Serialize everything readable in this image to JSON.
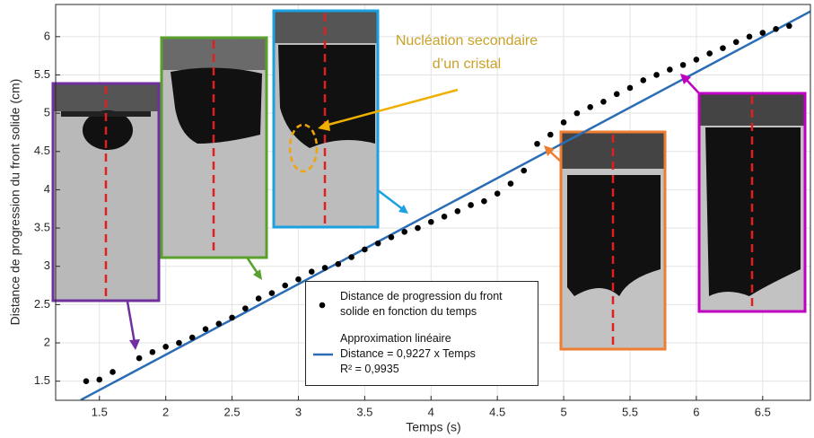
{
  "chart_data": {
    "type": "scatter",
    "x_label": "Temps (s)",
    "y_label": "Distance de progression du front solide (cm)",
    "annotation": "Nucléation secondaire d’un cristal",
    "xlim": [
      1.17,
      6.86
    ],
    "ylim": [
      1.25,
      6.42
    ],
    "xticks": [
      1.5,
      2,
      2.5,
      3,
      3.5,
      4,
      4.5,
      5,
      5.5,
      6,
      6.5
    ],
    "yticks": [
      1.5,
      2,
      2.5,
      3,
      3.5,
      4,
      4.5,
      5,
      5.5,
      6
    ],
    "grid": true,
    "series": [
      {
        "name": "Distance de progression du front solide en fonction du temps",
        "type": "scatter",
        "color": "#000000",
        "x": [
          1.4,
          1.5,
          1.6,
          1.8,
          1.9,
          2.0,
          2.1,
          2.2,
          2.3,
          2.4,
          2.5,
          2.6,
          2.7,
          2.8,
          2.9,
          3.0,
          3.1,
          3.2,
          3.3,
          3.4,
          3.5,
          3.6,
          3.7,
          3.8,
          3.9,
          4.0,
          4.1,
          4.2,
          4.3,
          4.4,
          4.5,
          4.6,
          4.7,
          4.8,
          4.9,
          5.0,
          5.1,
          5.2,
          5.3,
          5.4,
          5.5,
          5.6,
          5.7,
          5.8,
          5.9,
          6.0,
          6.1,
          6.2,
          6.3,
          6.4,
          6.5,
          6.6,
          6.7
        ],
        "values": [
          1.5,
          1.52,
          1.62,
          1.8,
          1.88,
          1.95,
          2.0,
          2.07,
          2.18,
          2.25,
          2.33,
          2.45,
          2.58,
          2.65,
          2.75,
          2.83,
          2.93,
          2.98,
          3.03,
          3.12,
          3.22,
          3.3,
          3.38,
          3.45,
          3.5,
          3.58,
          3.65,
          3.72,
          3.8,
          3.85,
          3.95,
          4.08,
          4.25,
          4.6,
          4.72,
          4.88,
          5.0,
          5.08,
          5.15,
          5.25,
          5.33,
          5.43,
          5.5,
          5.57,
          5.63,
          5.7,
          5.78,
          5.85,
          5.93,
          6.0,
          6.05,
          6.1,
          6.14
        ]
      },
      {
        "name": "Approximation linéaire",
        "type": "line",
        "color": "#2a6db5",
        "equation": "Distance =  0,9227 x Temps",
        "r_squared": "R² = 0,9935",
        "x": [
          1.36,
          6.86
        ],
        "values": [
          1.2549,
          6.3297
        ]
      }
    ]
  }
}
